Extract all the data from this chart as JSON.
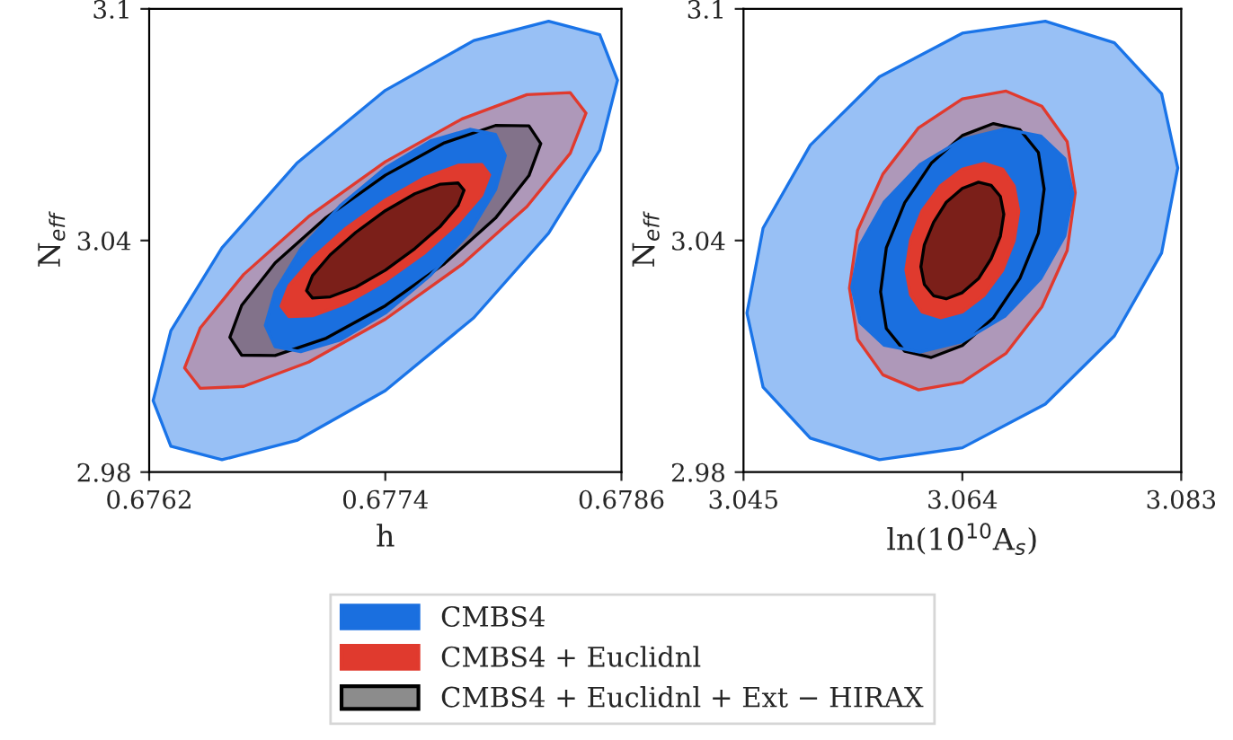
{
  "chart_data": [
    {
      "type": "area",
      "xlabel": "h",
      "ylabel": "N$_{eff}$",
      "xlim": [
        0.6762,
        0.6786
      ],
      "xticks": [
        0.6762,
        0.6774,
        0.6786
      ],
      "ylim": [
        2.98,
        3.1
      ],
      "yticks": [
        2.98,
        3.04,
        3.1
      ],
      "grid": false,
      "legend": "bottom",
      "series": [
        {
          "color": "#1a74e8",
          "x": [
            0.67858,
            0.67849,
            0.67823,
            0.67785,
            0.6774,
            0.67695,
            0.67657,
            0.67631,
            0.67622,
            0.67631,
            0.67657,
            0.67695,
            0.6774,
            0.67785,
            0.67823,
            0.67849
          ],
          "values": [
            3.0815,
            3.0933,
            3.0968,
            3.0918,
            3.0789,
            3.06,
            3.0381,
            3.0166,
            2.9985,
            2.9867,
            2.9832,
            2.9882,
            3.0011,
            3.02,
            3.0419,
            3.0634
          ]
        },
        {
          "color": "#e03a2e",
          "x": [
            0.67842,
            0.67834,
            0.67812,
            0.67779,
            0.6774,
            0.67701,
            0.67668,
            0.67646,
            0.67638,
            0.67646,
            0.67668,
            0.67701,
            0.6774,
            0.67779,
            0.67812,
            0.67834
          ],
          "values": [
            3.073,
            3.0783,
            3.0778,
            3.0715,
            3.0604,
            3.0462,
            3.0312,
            3.0174,
            3.007,
            3.0017,
            3.0022,
            3.0085,
            3.0196,
            3.0338,
            3.0488,
            3.0626
          ]
        },
        {
          "color": "#000000",
          "x": [
            0.67819,
            0.67813,
            0.67796,
            0.6777,
            0.6774,
            0.6771,
            0.67684,
            0.67667,
            0.67661,
            0.67667,
            0.67684,
            0.6771,
            0.6774,
            0.6777,
            0.67796,
            0.67813
          ],
          "values": [
            3.0651,
            3.0697,
            3.0698,
            3.0653,
            3.0569,
            3.046,
            3.0342,
            3.0232,
            3.0149,
            3.0103,
            3.0102,
            3.0147,
            3.0231,
            3.034,
            3.0458,
            3.0568
          ]
        },
        {
          "name": "CMBS4",
          "color": "#1a6fdf",
          "x": [
            0.67801,
            0.67796,
            0.67783,
            0.67763,
            0.6774,
            0.67717,
            0.67697,
            0.67684,
            0.67679,
            0.67684,
            0.67697,
            0.67717,
            0.6774,
            0.67763,
            0.67783,
            0.67796
          ],
          "values": [
            3.062,
            3.0675,
            3.0688,
            3.0658,
            3.0588,
            3.049,
            3.0378,
            3.0269,
            3.018,
            3.0125,
            3.0112,
            3.0142,
            3.0212,
            3.031,
            3.0422,
            3.0531
          ]
        },
        {
          "name": "CMBS4 + Euclidnl",
          "color": "#e03a2e",
          "x": [
            0.67793,
            0.67789,
            0.67777,
            0.6776,
            0.6774,
            0.6772,
            0.67703,
            0.67691,
            0.67687,
            0.67691,
            0.67703,
            0.6772,
            0.6774,
            0.6776,
            0.67777,
            0.67789
          ],
          "values": [
            3.057,
            3.0597,
            3.0595,
            3.0563,
            3.0505,
            3.0432,
            3.0354,
            3.0283,
            3.023,
            3.0203,
            3.0205,
            3.0237,
            3.0295,
            3.0368,
            3.0446,
            3.0517
          ]
        },
        {
          "name": "CMBS4 + Euclidnl + Ext − HIRAX",
          "color": "#000000",
          "x": [
            0.6778,
            0.67777,
            0.67768,
            0.67755,
            0.6774,
            0.67725,
            0.67712,
            0.67703,
            0.677,
            0.67703,
            0.67712,
            0.67725,
            0.6774,
            0.67755,
            0.67768,
            0.67777
          ],
          "values": [
            3.053,
            3.0549,
            3.0546,
            3.0521,
            3.0477,
            3.0421,
            3.0363,
            3.0309,
            3.027,
            3.0251,
            3.0254,
            3.0279,
            3.0323,
            3.0379,
            3.0437,
            3.0491
          ]
        }
      ]
    },
    {
      "type": "area",
      "xlabel": "ln(10$^{10}$A$_{s}$)",
      "ylabel": "N$_{eff}$",
      "xlim": [
        3.045,
        3.083
      ],
      "xticks": [
        3.045,
        3.064,
        3.083
      ],
      "ylim": [
        2.98,
        3.1
      ],
      "yticks": [
        2.98,
        3.04,
        3.1
      ],
      "grid": false,
      "series": [
        {
          "color": "#1a74e8",
          "x": [
            3.0827,
            3.0813,
            3.0772,
            3.0712,
            3.064,
            3.0568,
            3.0508,
            3.0467,
            3.0453,
            3.0467,
            3.0508,
            3.0568,
            3.064,
            3.0712,
            3.0772,
            3.0813
          ],
          "values": [
            3.0588,
            3.078,
            3.0912,
            3.0968,
            3.0937,
            3.0824,
            3.0647,
            3.0432,
            3.0212,
            3.002,
            2.9888,
            2.9832,
            2.9863,
            2.9976,
            3.0153,
            3.0368
          ]
        },
        {
          "color": "#e03a2e",
          "x": [
            3.0738,
            3.0731,
            3.0709,
            3.0678,
            3.064,
            3.0602,
            3.0571,
            3.0549,
            3.0542,
            3.0549,
            3.0571,
            3.0602,
            3.064,
            3.0678,
            3.0709,
            3.0731
          ],
          "values": [
            3.0524,
            3.0656,
            3.0748,
            3.0787,
            3.0767,
            3.0692,
            3.0572,
            3.0426,
            3.0276,
            3.0144,
            3.0052,
            3.0013,
            3.0033,
            3.0108,
            3.0228,
            3.0374
          ]
        },
        {
          "color": "#000000",
          "x": [
            3.0711,
            3.0706,
            3.069,
            3.0667,
            3.064,
            3.0613,
            3.059,
            3.0574,
            3.0569,
            3.0574,
            3.059,
            3.0613,
            3.064,
            3.0667,
            3.069,
            3.0706
          ],
          "values": [
            3.0533,
            3.0628,
            3.0687,
            3.0703,
            3.0672,
            3.06,
            3.0498,
            3.0381,
            3.0267,
            3.0172,
            3.0113,
            3.0097,
            3.0128,
            3.02,
            3.0302,
            3.0419
          ]
        },
        {
          "color": "#1a6fdf",
          "x": [
            3.0736,
            3.0729,
            3.0708,
            3.0677,
            3.064,
            3.0603,
            3.0572,
            3.0551,
            3.0544,
            3.0551,
            3.0572,
            3.0603,
            3.064,
            3.0677,
            3.0708,
            3.0729
          ],
          "values": [
            3.0521,
            3.0612,
            3.0671,
            3.0689,
            3.0662,
            3.0596,
            3.0499,
            3.0388,
            3.0279,
            3.0188,
            3.0129,
            3.0111,
            3.0138,
            3.0204,
            3.0301,
            3.0412
          ]
        },
        {
          "color": "#e03a2e",
          "x": [
            3.0689,
            3.0685,
            3.0675,
            3.0659,
            3.064,
            3.0621,
            3.0605,
            3.0595,
            3.0591,
            3.0595,
            3.0605,
            3.0621,
            3.064,
            3.0659,
            3.0675,
            3.0685
          ],
          "values": [
            3.0476,
            3.0541,
            3.0585,
            3.06,
            3.0585,
            3.0542,
            3.0477,
            3.0401,
            3.0324,
            3.0259,
            3.0215,
            3.02,
            3.0215,
            3.0258,
            3.0323,
            3.0399
          ]
        },
        {
          "color": "#000000",
          "x": [
            3.0676,
            3.0673,
            3.0665,
            3.0654,
            3.064,
            3.0626,
            3.0615,
            3.0607,
            3.0604,
            3.0607,
            3.0615,
            3.0626,
            3.064,
            3.0654,
            3.0665,
            3.0673
          ],
          "values": [
            3.0468,
            3.0514,
            3.0543,
            3.0551,
            3.0535,
            3.0499,
            3.0447,
            3.0389,
            3.0332,
            3.0286,
            3.0257,
            3.0249,
            3.0265,
            3.0301,
            3.0353,
            3.0411
          ]
        }
      ]
    }
  ]
}
